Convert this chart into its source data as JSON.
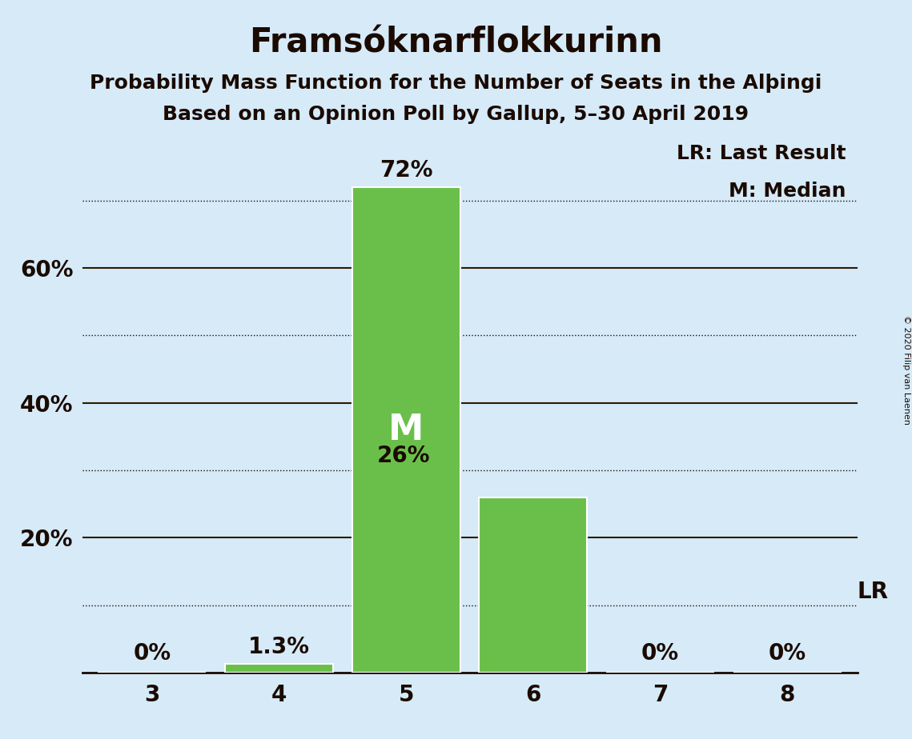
{
  "title": "Framsóknarflokkurinn",
  "subtitle1": "Probability Mass Function for the Number of Seats in the Alþingi",
  "subtitle2": "Based on an Opinion Poll by Gallup, 5–30 April 2019",
  "copyright": "© 2020 Filip van Laenen",
  "categories": [
    3,
    4,
    5,
    6,
    7,
    8
  ],
  "values": [
    0.0,
    1.3,
    72.0,
    26.0,
    0.0,
    0.0
  ],
  "bar_color": "#6abf4b",
  "background_color": "#d6eaf8",
  "median_bar": 5,
  "lr_value": 10.0,
  "lr_bar": 8,
  "ylim": [
    0,
    80
  ],
  "yticks_solid": [
    20,
    40,
    60
  ],
  "yticks_dotted": [
    10,
    30,
    50,
    70
  ],
  "bar_labels": [
    "0%",
    "1.3%",
    "72%",
    "26%",
    "0%",
    "0%"
  ],
  "median_label": "M",
  "lr_label": "LR",
  "legend_lr": "LR: Last Result",
  "legend_m": "M: Median",
  "title_fontsize": 30,
  "subtitle_fontsize": 18,
  "label_fontsize": 20,
  "tick_fontsize": 20,
  "legend_fontsize": 18,
  "median_label_fontsize": 32,
  "bar_edge_color": "white",
  "text_color": "#1a0a00",
  "axis_color": "#1a0a00",
  "solid_line_color": "#2c1a00",
  "dotted_line_color": "#1a0a00"
}
